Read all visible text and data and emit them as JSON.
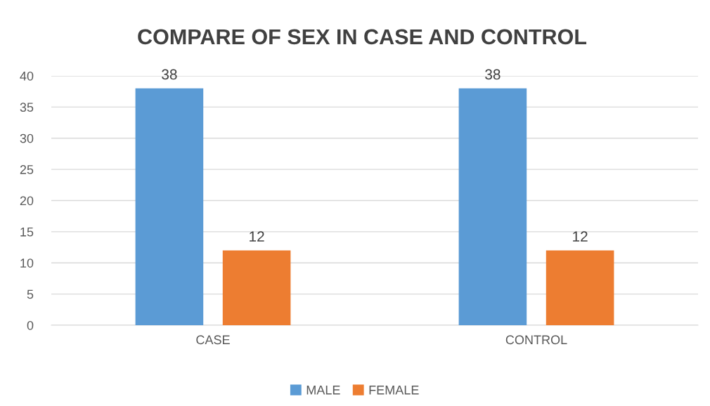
{
  "chart_data": {
    "type": "bar",
    "title": "COMPARE OF SEX IN CASE AND CONTROL",
    "categories": [
      "CASE",
      "CONTROL"
    ],
    "series": [
      {
        "name": "MALE",
        "color": "#5b9bd5",
        "values": [
          38,
          38
        ]
      },
      {
        "name": "FEMALE",
        "color": "#ed7d31",
        "values": [
          12,
          12
        ]
      }
    ],
    "ylim": [
      0,
      40
    ],
    "yticks": [
      0,
      5,
      10,
      15,
      20,
      25,
      30,
      35,
      40
    ],
    "grid": "y",
    "legend": "bottom",
    "data_labels": true
  }
}
